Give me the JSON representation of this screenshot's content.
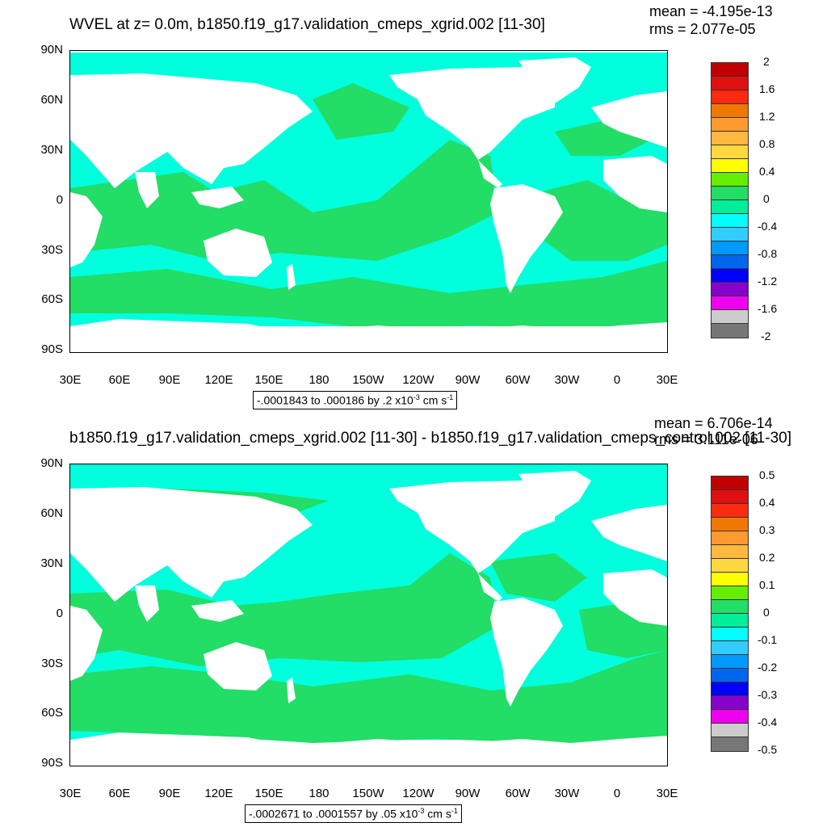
{
  "panels": [
    {
      "title": "WVEL at z=   0.0m, b1850.f19_g17.validation_cmeps_xgrid.002 [11-30]",
      "mean": "mean = -4.195e-13",
      "rms": "rms = 2.077e-05",
      "range_prefix": "-.0001843 to .000186 by .2 x10",
      "range_exp": "-3",
      "range_unit": " cm s",
      "range_unit_exp": "-1",
      "colorbar_labels": [
        "2",
        "1.6",
        "1.2",
        "0.8",
        "0.4",
        "0",
        "-0.4",
        "-0.8",
        "-1.2",
        "-1.6",
        "-2"
      ]
    },
    {
      "title": "b1850.f19_g17.validation_cmeps_xgrid.002 [11-30] - b1850.f19_g17.validation_cmeps_control.002 [11-30]",
      "mean": "mean = 6.706e-14",
      "rms": "rms = 3.111e-06",
      "range_prefix": "-.0002671 to .0001557 by .05 x10",
      "range_exp": "-3",
      "range_unit": " cm s",
      "range_unit_exp": "-1",
      "colorbar_labels": [
        "0.5",
        "0.4",
        "0.3",
        "0.2",
        "0.1",
        "0",
        "-0.1",
        "-0.2",
        "-0.3",
        "-0.4",
        "-0.5"
      ]
    }
  ],
  "lat_labels": [
    "90N",
    "60N",
    "30N",
    "0",
    "30S",
    "60S",
    "90S"
  ],
  "lon_labels": [
    "30E",
    "60E",
    "90E",
    "120E",
    "150E",
    "180",
    "150W",
    "120W",
    "90W",
    "60W",
    "30W",
    "0",
    "30E"
  ],
  "colormap": [
    "#c00000",
    "#e01010",
    "#ff2a10",
    "#f07800",
    "#ff9a30",
    "#ffb840",
    "#ffd840",
    "#ffff00",
    "#66ee00",
    "#22dd66",
    "#00ee99",
    "#00ffff",
    "#33ccff",
    "#0099ff",
    "#0066ee",
    "#0000ff",
    "#8800cc",
    "#ee00ee",
    "#cccccc",
    "#777777"
  ],
  "field_colors": {
    "near_zero_positive": "#22dd66",
    "near_zero_negative": "#00ffdd",
    "land": "#ffffff"
  }
}
